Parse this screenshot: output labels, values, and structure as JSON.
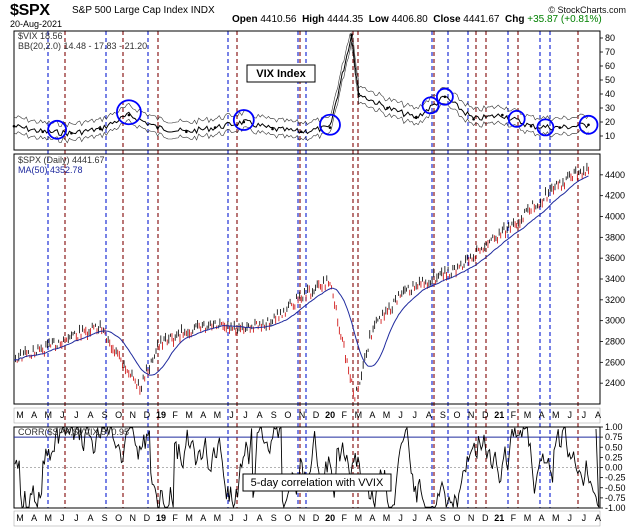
{
  "header": {
    "ticker": "$SPX",
    "name": "S&P 500 Large Cap Index",
    "exchange": "INDX",
    "date": "20-Aug-2021",
    "ohlc": {
      "open_label": "Open",
      "open": "4410.56",
      "high_label": "High",
      "high": "4444.35",
      "low_label": "Low",
      "low": "4406.80",
      "close_label": "Close",
      "close": "4441.67",
      "chg_label": "Chg",
      "chg": "+35.87 (+0.81%)"
    },
    "source": "© StockCharts.com",
    "chg_color": "#008000"
  },
  "chart_data": [
    {
      "type": "line",
      "panel": "VIX",
      "legend": [
        "$VIX 18.56",
        "BB(20,2.0) 14.48 - 17.83 - 21.20"
      ],
      "annotation": "VIX Index",
      "ylim": [
        0,
        85
      ],
      "ticks": [
        "10",
        "20",
        "30",
        "40",
        "50",
        "60",
        "70",
        "80"
      ],
      "x": [
        "2018-04",
        "2018-06",
        "2018-08",
        "2018-10",
        "2018-12",
        "2019-02",
        "2019-04",
        "2019-06",
        "2019-08",
        "2019-10",
        "2019-12",
        "2020-02",
        "2020-03-16",
        "2020-04",
        "2020-06",
        "2020-08",
        "2020-10",
        "2020-12",
        "2021-02",
        "2021-04",
        "2021-06",
        "2021-08"
      ],
      "values": [
        17,
        13,
        12,
        15,
        25,
        16,
        13,
        16,
        20,
        15,
        13,
        16,
        82,
        40,
        30,
        23,
        38,
        22,
        25,
        17,
        16,
        18
      ],
      "circled_spikes": [
        "2018-07",
        "2018-12",
        "2019-08",
        "2020-02",
        "2020-09",
        "2020-10",
        "2021-03",
        "2021-05",
        "2021-08"
      ]
    },
    {
      "type": "line",
      "panel": "SPX",
      "legend": [
        "$SPX (Daily) 4441.67",
        "MA(50) 4352.78"
      ],
      "ylim": [
        2200,
        4600
      ],
      "ticks": [
        "2400",
        "2600",
        "2800",
        "3000",
        "3200",
        "3400",
        "3600",
        "3800",
        "4000",
        "4200",
        "4400"
      ],
      "x": [
        "2018-04",
        "2018-06",
        "2018-08",
        "2018-10",
        "2018-11",
        "2018-12-24",
        "2019-02",
        "2019-04",
        "2019-06",
        "2019-08",
        "2019-10",
        "2019-12",
        "2020-02",
        "2020-03-23",
        "2020-05",
        "2020-07",
        "2020-09",
        "2020-11",
        "2021-01",
        "2021-03",
        "2021-05",
        "2021-07",
        "2021-08"
      ],
      "values": [
        2640,
        2720,
        2850,
        2930,
        2720,
        2350,
        2760,
        2900,
        2950,
        2900,
        3000,
        3230,
        3380,
        2240,
        2950,
        3250,
        3400,
        3500,
        3750,
        3950,
        4200,
        4400,
        4442
      ],
      "ma_label": "MA(50)"
    },
    {
      "type": "line",
      "panel": "CORR",
      "legend": "CORR($SPX,$VVIX,5) 0.95",
      "annotation": "5-day correlation with VVIX",
      "ylim": [
        -1.0,
        1.0
      ],
      "ticks": [
        "1.00",
        "0.75",
        "0.50",
        "0.25",
        "0.00",
        "-0.25",
        "-0.50",
        "-0.75",
        "-1.00"
      ],
      "threshold_lines": [
        0.75,
        0.0
      ],
      "last_value": 0.95
    }
  ],
  "x_axis": {
    "labels": [
      "M",
      "A",
      "M",
      "J",
      "J",
      "A",
      "S",
      "O",
      "N",
      "D",
      "19",
      "F",
      "M",
      "A",
      "M",
      "J",
      "J",
      "A",
      "S",
      "O",
      "N",
      "D",
      "20",
      "F",
      "M",
      "A",
      "M",
      "J",
      "J",
      "A",
      "S",
      "O",
      "N",
      "D",
      "21",
      "F",
      "M",
      "A",
      "M",
      "J",
      "J",
      "A"
    ],
    "bold": [
      "19",
      "20",
      "21"
    ]
  },
  "colors": {
    "blue_line": "#1f2fd6",
    "red_line": "#8b1a1a",
    "up_bar": "#000000",
    "down_bar": "#cc0000",
    "ma_line": "#1f2a9e",
    "circle": "#0000ff"
  }
}
